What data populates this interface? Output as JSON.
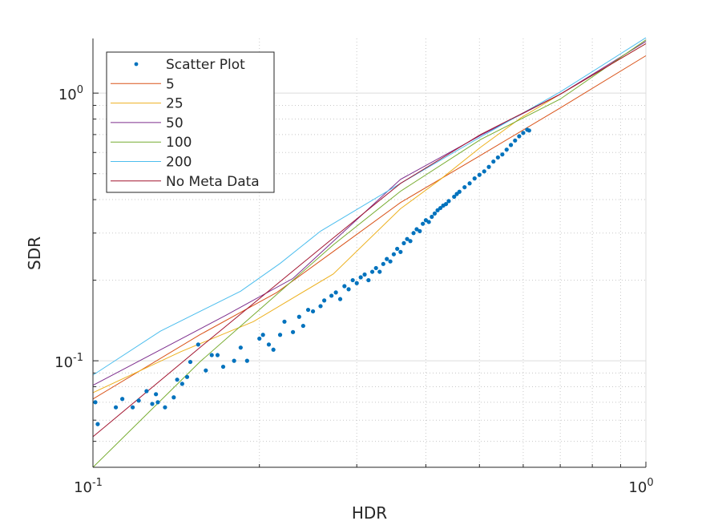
{
  "chart_data": {
    "type": "scatter",
    "xlabel": "HDR",
    "ylabel": "SDR",
    "xscale": "log",
    "yscale": "log",
    "xlim": [
      0.1,
      1.0
    ],
    "ylim": [
      0.04,
      1.6
    ],
    "grid": "on (major solid, minor dotted)",
    "legend_position": "top-left",
    "x_ticks": [
      {
        "value": 0.1,
        "base": "10",
        "exp": "-1"
      },
      {
        "value": 1.0,
        "base": "10",
        "exp": "0"
      }
    ],
    "y_ticks": [
      {
        "value": 0.1,
        "base": "10",
        "exp": "-1"
      },
      {
        "value": 1.0,
        "base": "10",
        "exp": "0"
      }
    ],
    "scatter": {
      "name": "Scatter Plot",
      "color": "#0072BD",
      "points": [
        [
          0.101,
          0.07
        ],
        [
          0.102,
          0.058
        ],
        [
          0.11,
          0.067
        ],
        [
          0.113,
          0.072
        ],
        [
          0.118,
          0.067
        ],
        [
          0.121,
          0.071
        ],
        [
          0.125,
          0.077
        ],
        [
          0.128,
          0.069
        ],
        [
          0.13,
          0.075
        ],
        [
          0.131,
          0.07
        ],
        [
          0.135,
          0.067
        ],
        [
          0.14,
          0.073
        ],
        [
          0.142,
          0.085
        ],
        [
          0.145,
          0.082
        ],
        [
          0.148,
          0.087
        ],
        [
          0.15,
          0.099
        ],
        [
          0.155,
          0.115
        ],
        [
          0.16,
          0.092
        ],
        [
          0.164,
          0.105
        ],
        [
          0.168,
          0.105
        ],
        [
          0.172,
          0.095
        ],
        [
          0.18,
          0.1
        ],
        [
          0.185,
          0.112
        ],
        [
          0.19,
          0.1
        ],
        [
          0.2,
          0.121
        ],
        [
          0.203,
          0.125
        ],
        [
          0.208,
          0.115
        ],
        [
          0.212,
          0.11
        ],
        [
          0.218,
          0.125
        ],
        [
          0.222,
          0.14
        ],
        [
          0.23,
          0.128
        ],
        [
          0.236,
          0.146
        ],
        [
          0.24,
          0.135
        ],
        [
          0.245,
          0.155
        ],
        [
          0.25,
          0.153
        ],
        [
          0.258,
          0.16
        ],
        [
          0.262,
          0.168
        ],
        [
          0.27,
          0.175
        ],
        [
          0.275,
          0.18
        ],
        [
          0.28,
          0.17
        ],
        [
          0.285,
          0.19
        ],
        [
          0.29,
          0.185
        ],
        [
          0.295,
          0.2
        ],
        [
          0.3,
          0.195
        ],
        [
          0.305,
          0.205
        ],
        [
          0.31,
          0.21
        ],
        [
          0.315,
          0.2
        ],
        [
          0.32,
          0.215
        ],
        [
          0.325,
          0.222
        ],
        [
          0.33,
          0.215
        ],
        [
          0.335,
          0.23
        ],
        [
          0.34,
          0.24
        ],
        [
          0.345,
          0.235
        ],
        [
          0.35,
          0.25
        ],
        [
          0.355,
          0.262
        ],
        [
          0.36,
          0.255
        ],
        [
          0.365,
          0.275
        ],
        [
          0.37,
          0.285
        ],
        [
          0.375,
          0.28
        ],
        [
          0.38,
          0.3
        ],
        [
          0.385,
          0.31
        ],
        [
          0.39,
          0.305
        ],
        [
          0.395,
          0.325
        ],
        [
          0.4,
          0.335
        ],
        [
          0.405,
          0.33
        ],
        [
          0.41,
          0.345
        ],
        [
          0.415,
          0.355
        ],
        [
          0.42,
          0.365
        ],
        [
          0.425,
          0.372
        ],
        [
          0.43,
          0.38
        ],
        [
          0.435,
          0.385
        ],
        [
          0.44,
          0.395
        ],
        [
          0.45,
          0.41
        ],
        [
          0.455,
          0.42
        ],
        [
          0.46,
          0.428
        ],
        [
          0.47,
          0.445
        ],
        [
          0.48,
          0.46
        ],
        [
          0.49,
          0.48
        ],
        [
          0.5,
          0.495
        ],
        [
          0.51,
          0.51
        ],
        [
          0.52,
          0.53
        ],
        [
          0.53,
          0.555
        ],
        [
          0.54,
          0.575
        ],
        [
          0.55,
          0.59
        ],
        [
          0.56,
          0.615
        ],
        [
          0.57,
          0.64
        ],
        [
          0.58,
          0.665
        ],
        [
          0.59,
          0.69
        ],
        [
          0.6,
          0.71
        ],
        [
          0.61,
          0.73
        ],
        [
          0.615,
          0.725
        ]
      ]
    },
    "series": [
      {
        "name": "5",
        "color": "#D95319",
        "x": [
          0.1,
          0.156,
          0.215,
          0.272,
          0.36,
          0.502,
          0.7,
          1.0
        ],
        "y": [
          0.072,
          0.125,
          0.18,
          0.256,
          0.39,
          0.585,
          0.88,
          1.38
        ]
      },
      {
        "name": "25",
        "color": "#EDB120",
        "x": [
          0.1,
          0.144,
          0.195,
          0.272,
          0.36,
          0.425,
          0.502,
          0.594,
          0.7,
          1.0
        ],
        "y": [
          0.076,
          0.108,
          0.14,
          0.211,
          0.37,
          0.476,
          0.627,
          0.808,
          0.99,
          1.53
        ]
      },
      {
        "name": "50",
        "color": "#7E2F8E",
        "x": [
          0.1,
          0.174,
          0.23,
          0.36,
          0.502,
          0.7,
          1.0
        ],
        "y": [
          0.081,
          0.148,
          0.203,
          0.476,
          0.694,
          0.99,
          1.56
        ]
      },
      {
        "name": "100",
        "color": "#77AC30",
        "x": [
          0.1,
          0.156,
          0.272,
          0.36,
          0.502,
          0.7,
          1.0
        ],
        "y": [
          0.04,
          0.099,
          0.271,
          0.43,
          0.67,
          0.95,
          1.58
        ]
      },
      {
        "name": "200",
        "color": "#4DBEEE",
        "x": [
          0.1,
          0.1324,
          0.185,
          0.218,
          0.258,
          0.36,
          0.502,
          0.7,
          1.0
        ],
        "y": [
          0.0884,
          0.129,
          0.182,
          0.231,
          0.305,
          0.46,
          0.685,
          1.01,
          1.61
        ]
      },
      {
        "name": "No Meta Data",
        "color": "#A2142F",
        "x": [
          0.1,
          0.156,
          0.27,
          0.36,
          0.502,
          0.7,
          1.0
        ],
        "y": [
          0.052,
          0.112,
          0.284,
          0.46,
          0.7,
          0.99,
          1.53
        ]
      }
    ]
  }
}
